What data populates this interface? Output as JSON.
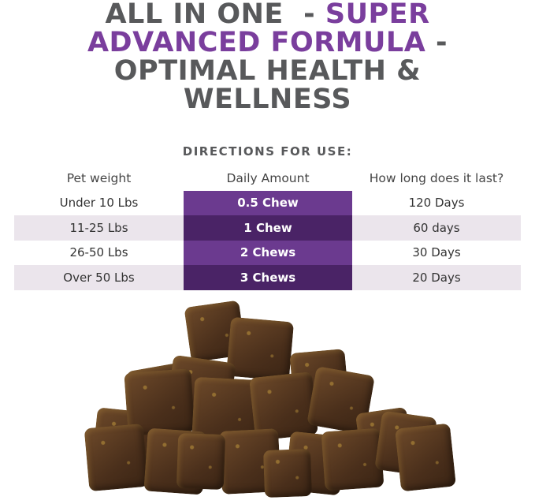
{
  "headline": {
    "line1_gray": "ALL IN ONE  - ",
    "line1_purple": "SUPER",
    "line2_purple": "ADVANCED FORMULA",
    "line2_gray": " -",
    "line3": "OPTIMAL HEALTH &",
    "line4": "WELLNESS"
  },
  "directions_title": "DIRECTIONS FOR USE:",
  "table": {
    "headers": [
      "Pet weight",
      "Daily Amount",
      "How long does it last?"
    ],
    "rows": [
      [
        "Under 10 Lbs",
        "0.5 Chew",
        "120 Days"
      ],
      [
        "11-25 Lbs",
        "1 Chew",
        "60 days"
      ],
      [
        "26-50 Lbs",
        "2 Chews",
        "30 Days"
      ],
      [
        "Over 50 Lbs",
        "3 Chews",
        "20 Days"
      ]
    ]
  },
  "colors": {
    "purple": "#7a3e9d",
    "gray": "#58595b",
    "column_light": "#6b3a8f",
    "column_dark": "#4a2366",
    "row_shade": "#ebe5ec"
  },
  "image": "pile-of-soft-chews"
}
